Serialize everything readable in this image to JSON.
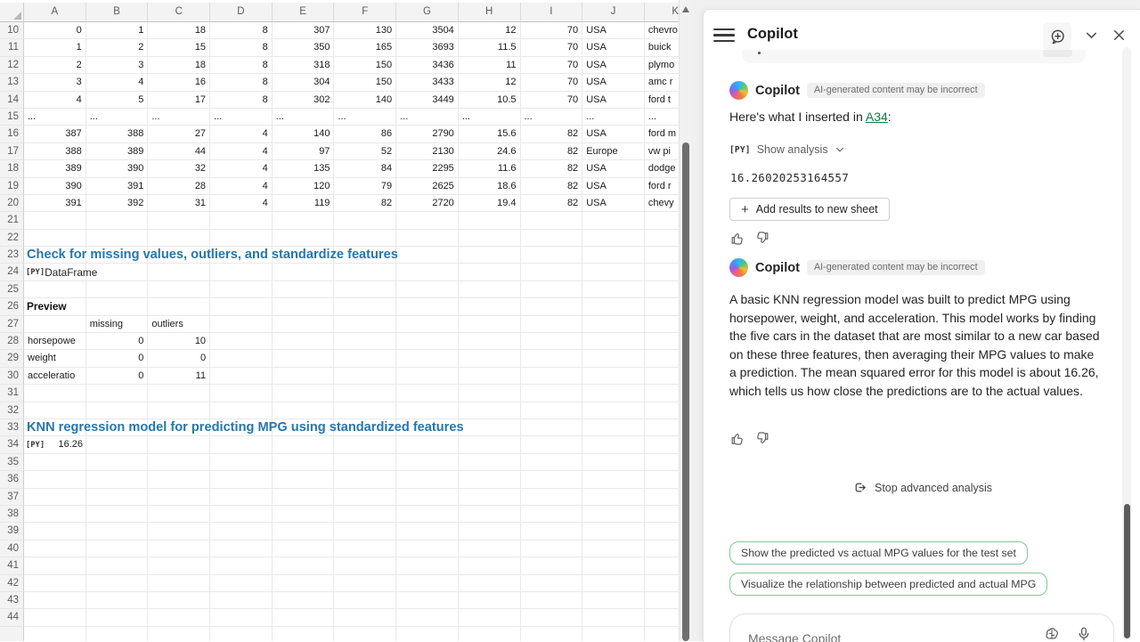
{
  "sheet": {
    "py_glyph": "[PY]",
    "columns": [
      "A",
      "B",
      "C",
      "D",
      "E",
      "F",
      "G",
      "H",
      "I",
      "J",
      "K"
    ],
    "col_width": 69.7,
    "rows": [
      {
        "n": 10,
        "cells": [
          "0",
          "1",
          "18",
          "8",
          "307",
          "130",
          "3504",
          "12",
          "70",
          "USA",
          "chevro"
        ]
      },
      {
        "n": 11,
        "cells": [
          "1",
          "2",
          "15",
          "8",
          "350",
          "165",
          "3693",
          "11.5",
          "70",
          "USA",
          "buick"
        ]
      },
      {
        "n": 12,
        "cells": [
          "2",
          "3",
          "18",
          "8",
          "318",
          "150",
          "3436",
          "11",
          "70",
          "USA",
          "plymo"
        ]
      },
      {
        "n": 13,
        "cells": [
          "3",
          "4",
          "16",
          "8",
          "304",
          "150",
          "3433",
          "12",
          "70",
          "USA",
          "amc r"
        ]
      },
      {
        "n": 14,
        "cells": [
          "4",
          "5",
          "17",
          "8",
          "302",
          "140",
          "3449",
          "10.5",
          "70",
          "USA",
          "ford t"
        ]
      },
      {
        "n": 15,
        "cells": [
          "...",
          "...",
          "...",
          "...",
          "...",
          "...",
          "...",
          "...",
          "...",
          "...",
          "..."
        ]
      },
      {
        "n": 16,
        "cells": [
          "387",
          "388",
          "27",
          "4",
          "140",
          "86",
          "2790",
          "15.6",
          "82",
          "USA",
          "ford m"
        ]
      },
      {
        "n": 17,
        "cells": [
          "388",
          "389",
          "44",
          "4",
          "97",
          "52",
          "2130",
          "24.6",
          "82",
          "Europe",
          "vw pi"
        ]
      },
      {
        "n": 18,
        "cells": [
          "389",
          "390",
          "32",
          "4",
          "135",
          "84",
          "2295",
          "11.6",
          "82",
          "USA",
          "dodge"
        ]
      },
      {
        "n": 19,
        "cells": [
          "390",
          "391",
          "28",
          "4",
          "120",
          "79",
          "2625",
          "18.6",
          "82",
          "USA",
          "ford r"
        ]
      },
      {
        "n": 20,
        "cells": [
          "391",
          "392",
          "31",
          "4",
          "119",
          "82",
          "2720",
          "19.4",
          "82",
          "USA",
          "chevy"
        ]
      },
      {
        "n": 21
      },
      {
        "n": 22
      },
      {
        "n": 23,
        "heading": "Check for missing values, outliers, and standardize features"
      },
      {
        "n": 24,
        "py": true,
        "label": "DataFrame"
      },
      {
        "n": 25
      },
      {
        "n": 26,
        "bold": "Preview"
      },
      {
        "n": 27,
        "cells": [
          "",
          "missing",
          "outliers",
          "",
          "",
          "",
          "",
          "",
          "",
          "",
          ""
        ]
      },
      {
        "n": 28,
        "cells": [
          "horsepowe",
          "0",
          "10",
          "",
          "",
          "",
          "",
          "",
          "",
          "",
          ""
        ]
      },
      {
        "n": 29,
        "cells": [
          "weight",
          "0",
          "0",
          "",
          "",
          "",
          "",
          "",
          "",
          "",
          ""
        ]
      },
      {
        "n": 30,
        "cells": [
          "acceleratio",
          "0",
          "11",
          "",
          "",
          "",
          "",
          "",
          "",
          "",
          ""
        ]
      },
      {
        "n": 31
      },
      {
        "n": 32
      },
      {
        "n": 33,
        "heading": "KNN regression model for predicting MPG using standardized features"
      },
      {
        "n": 34,
        "py": true,
        "value": "16.26"
      },
      {
        "n": 35
      },
      {
        "n": 36
      },
      {
        "n": 37
      },
      {
        "n": 38
      },
      {
        "n": 39
      },
      {
        "n": 40
      },
      {
        "n": 41
      },
      {
        "n": 42
      },
      {
        "n": 43
      },
      {
        "n": 44
      },
      {
        "n": 45,
        "blank_label": true
      }
    ]
  },
  "copilot": {
    "title": "Copilot",
    "badge": "AI-generated content may be incorrect",
    "message1": {
      "author": "Copilot",
      "intro_prefix": "Here's what I inserted in ",
      "cell_ref": "A34",
      "intro_suffix": ":",
      "show_analysis": "Show analysis",
      "result": "16.26020253164557",
      "add_button": "Add results to new sheet"
    },
    "message2": {
      "author": "Copilot",
      "text": "A basic KNN regression model was built to predict MPG using horsepower, weight, and acceleration. This model works by finding the five cars in the dataset that are most similar to a new car based on these three features, then averaging their MPG values to make a prediction. The mean squared error for this model is about 16.26, which tells us how close the predictions are to the actual values."
    },
    "stop_button": "Stop advanced analysis",
    "suggestions": [
      "Show the predicted vs actual MPG values for the test set",
      "Visualize the relationship between predicted and actual MPG"
    ],
    "input_placeholder": "Message Copilot",
    "icons": [
      "hamburger-icon",
      "new-chat-icon",
      "chevron-down-icon",
      "close-icon",
      "python-icon",
      "thumbs-up-icon",
      "thumbs-down-icon",
      "stop-exit-icon",
      "prompt-guide-icon",
      "microphone-icon"
    ],
    "colors": {
      "heading_blue": "#2776ab",
      "link_green": "#107C41",
      "chip_border": "#85c598",
      "badge_bg": "#f0f0f0"
    }
  }
}
